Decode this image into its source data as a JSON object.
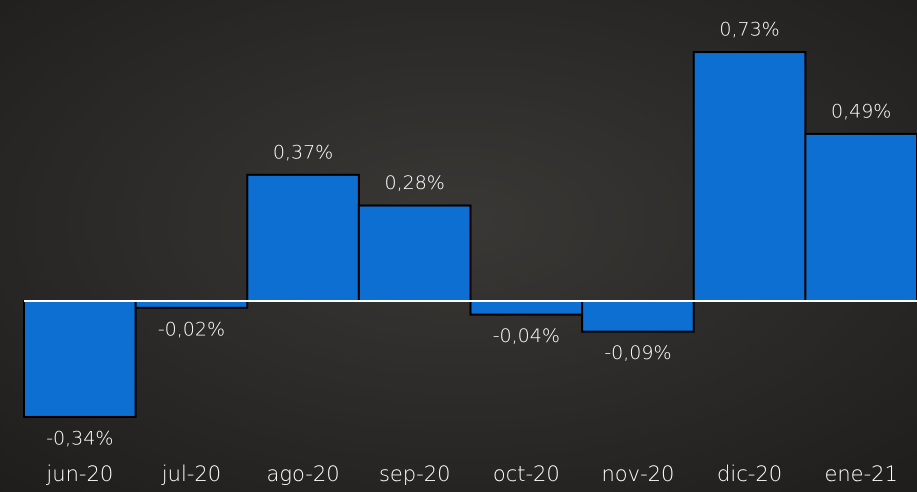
{
  "chart_data": {
    "type": "bar",
    "categories": [
      "jun-20",
      "jul-20",
      "ago-20",
      "sep-20",
      "oct-20",
      "nov-20",
      "dic-20",
      "ene-21"
    ],
    "values": [
      -0.34,
      -0.02,
      0.37,
      0.28,
      -0.04,
      -0.09,
      0.73,
      0.49
    ],
    "value_labels": [
      "-0,34%",
      "-0,02%",
      "0,37%",
      "0,28%",
      "-0,04%",
      "-0,09%",
      "0,73%",
      "0,49%"
    ],
    "color": "#0d6fd1"
  }
}
